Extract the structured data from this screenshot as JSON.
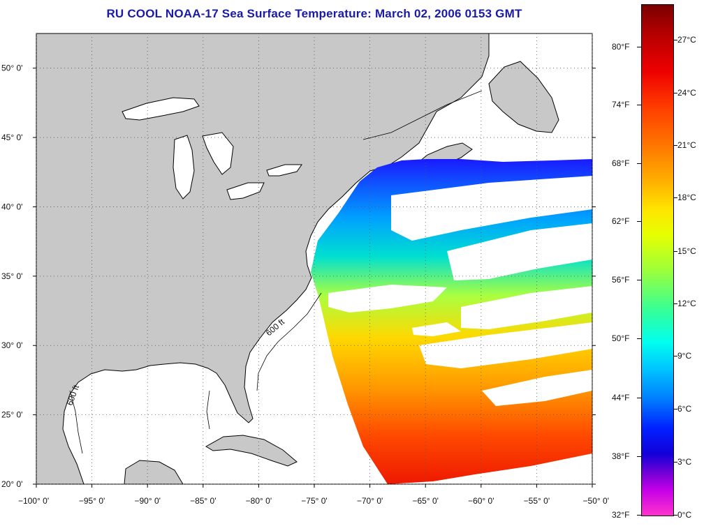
{
  "title": "RU COOL  NOAA-17  Sea Surface Temperature:  March 02, 2006 0153 GMT",
  "map": {
    "lon_range": [
      -100,
      -50
    ],
    "lat_range": [
      20,
      52.5
    ],
    "lon_ticks": [
      {
        "lon": -100,
        "label": "−100° 0'"
      },
      {
        "lon": -95,
        "label": "−95° 0'"
      },
      {
        "lon": -90,
        "label": "−90° 0'"
      },
      {
        "lon": -85,
        "label": "−85° 0'"
      },
      {
        "lon": -80,
        "label": "−80° 0'"
      },
      {
        "lon": -75,
        "label": "−75° 0'"
      },
      {
        "lon": -70,
        "label": "−70° 0'"
      },
      {
        "lon": -65,
        "label": "−65° 0'"
      },
      {
        "lon": -60,
        "label": "−60° 0'"
      },
      {
        "lon": -55,
        "label": "−55° 0'"
      },
      {
        "lon": -50,
        "label": "−50° 0'"
      }
    ],
    "lat_ticks": [
      {
        "lat": 20,
        "label": "20° 0'"
      },
      {
        "lat": 25,
        "label": "25° 0'"
      },
      {
        "lat": 30,
        "label": "30° 0'"
      },
      {
        "lat": 35,
        "label": "35° 0'"
      },
      {
        "lat": 40,
        "label": "40° 0'"
      },
      {
        "lat": 45,
        "label": "45° 0'"
      },
      {
        "lat": 50,
        "label": "50° 0'"
      }
    ],
    "contour_label": "600 ft",
    "land_color": "#c8c8c8",
    "ocean_color": "#ffffff"
  },
  "colorbar": {
    "fahrenheit": [
      {
        "label": "80°F",
        "frac": 0.083
      },
      {
        "label": "74°F",
        "frac": 0.197
      },
      {
        "label": "68°F",
        "frac": 0.311
      },
      {
        "label": "62°F",
        "frac": 0.425
      },
      {
        "label": "56°F",
        "frac": 0.54
      },
      {
        "label": "50°F",
        "frac": 0.655
      },
      {
        "label": "44°F",
        "frac": 0.77
      },
      {
        "label": "38°F",
        "frac": 0.885
      },
      {
        "label": "32°F",
        "frac": 1.0
      }
    ],
    "celsius": [
      {
        "label": "27°C",
        "frac": 0.07
      },
      {
        "label": "24°C",
        "frac": 0.173
      },
      {
        "label": "21°C",
        "frac": 0.276
      },
      {
        "label": "18°C",
        "frac": 0.379
      },
      {
        "label": "15°C",
        "frac": 0.483
      },
      {
        "label": "12°C",
        "frac": 0.586
      },
      {
        "label": "9°C",
        "frac": 0.689
      },
      {
        "label": "6°C",
        "frac": 0.793
      },
      {
        "label": "3°C",
        "frac": 0.896
      },
      {
        "label": "0°C",
        "frac": 1.0
      }
    ]
  }
}
